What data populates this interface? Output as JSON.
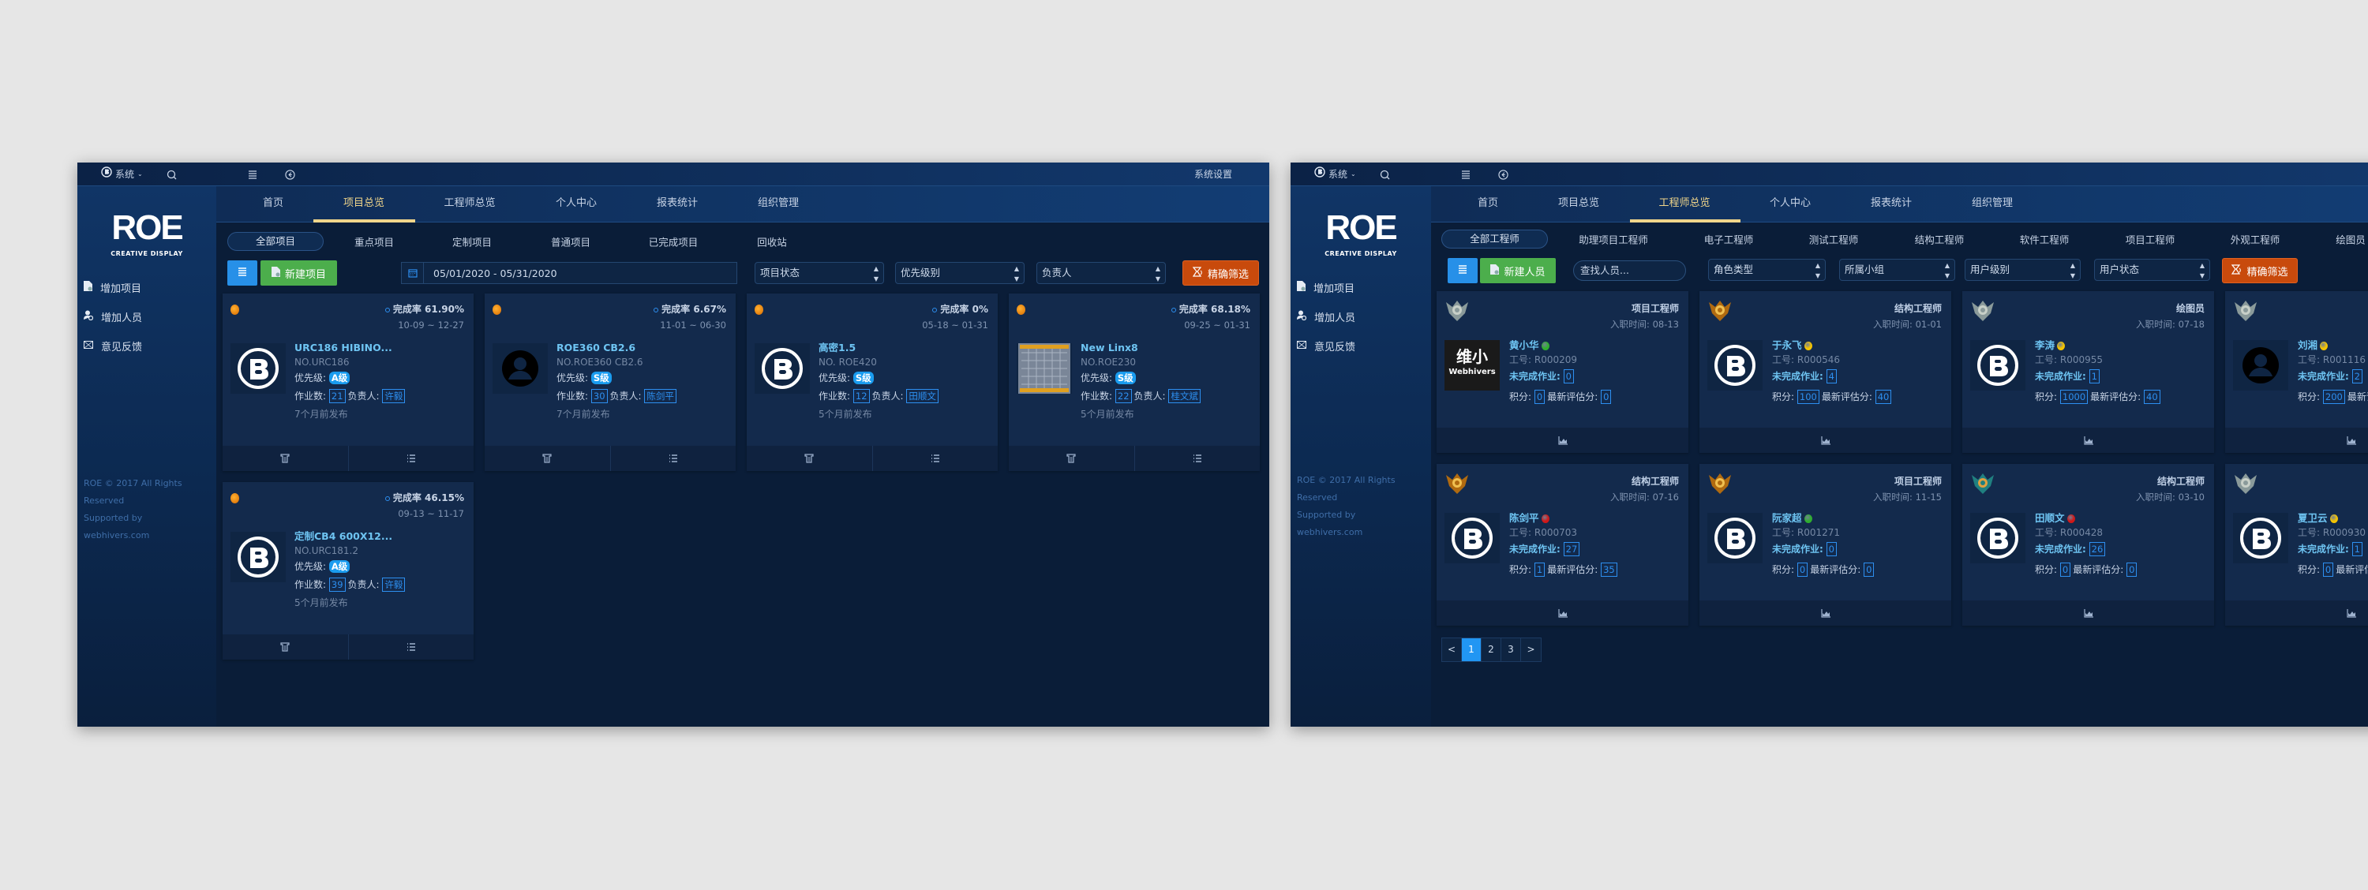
{
  "colors": {
    "accent": "#2d8ff0",
    "active_tab": "#f0d58a",
    "new_button": "#4cae4c",
    "filter_button": "#c84a0c",
    "view_button": "#2790e8",
    "status_green": "#2fae2f",
    "status_yellow": "#f5c400",
    "status_red": "#d01818"
  },
  "brand": {
    "logo_main": "ROE",
    "logo_sub": "CREATIVE DISPLAY"
  },
  "topbar": {
    "system_label": "系统",
    "settings_label": "系统设置"
  },
  "nav": {
    "tabs": [
      "首页",
      "项目总览",
      "工程师总览",
      "个人中心",
      "报表统计",
      "组织管理"
    ]
  },
  "sidebar": {
    "items": [
      {
        "label": "增加项目",
        "icon": "add-file-icon"
      },
      {
        "label": "增加人员",
        "icon": "add-user-icon"
      },
      {
        "label": "意见反馈",
        "icon": "feedback-mail-icon"
      }
    ],
    "footer": [
      "ROE © 2017 All Rights",
      "Reserved",
      "Supported by",
      "webhivers.com"
    ]
  },
  "projects": {
    "active_tab": "项目总览",
    "subtabs": [
      "全部项目",
      "重点项目",
      "定制项目",
      "普通项目",
      "已完成项目",
      "回收站"
    ],
    "toolbar": {
      "new_label": "新建项目",
      "date_range": "05/01/2020 - 05/31/2020",
      "selects": [
        "项目状态",
        "优先级别",
        "负责人"
      ],
      "filter_label": "精确筛选"
    },
    "labels": {
      "rate": "完成率",
      "priority": "优先级:",
      "tasks": "作业数:",
      "owner": "负责人:"
    },
    "cards": [
      {
        "rate": "61.90%",
        "dates": "10-09 ~ 12-27",
        "title": "URC186 HIBINO...",
        "no": "NO.URC186",
        "priority": "A级",
        "tasks": "21",
        "owner": "许毅",
        "published": "7个月前发布",
        "avatar": "b-logo"
      },
      {
        "rate": "6.67%",
        "dates": "11-01 ~ 06-30",
        "title": "ROE360 CB2.6",
        "no": "NO.ROE360 CB2.6",
        "priority": "S级",
        "tasks": "30",
        "owner": "陈剑平",
        "published": "7个月前发布",
        "avatar": "person"
      },
      {
        "rate": "0%",
        "dates": "05-18 ~ 01-31",
        "title": "高密1.5",
        "no": "NO. ROE420",
        "priority": "S级",
        "tasks": "12",
        "owner": "田顺文",
        "published": "5个月前发布",
        "avatar": "b-logo"
      },
      {
        "rate": "68.18%",
        "dates": "09-25 ~ 01-31",
        "title": "New Linx8",
        "no": "NO.ROE230",
        "priority": "S级",
        "tasks": "22",
        "owner": "桂文斌",
        "published": "5个月前发布",
        "avatar": "product-image"
      },
      {
        "rate": "46.15%",
        "dates": "09-13 ~ 11-17",
        "title": "定制CB4 600X12...",
        "no": "NO.URC181.2",
        "priority": "A级",
        "tasks": "39",
        "owner": "许毅",
        "published": "5个月前发布",
        "avatar": "b-logo"
      }
    ]
  },
  "engineers": {
    "active_tab": "工程师总览",
    "subtabs": [
      "全部工程师",
      "助理项目工程师",
      "电子工程师",
      "测试工程师",
      "结构工程师",
      "软件工程师",
      "项目工程师",
      "外观工程师",
      "绘图员"
    ],
    "toolbar": {
      "new_label": "新建人员",
      "search_placeholder": "查找人员...",
      "selects": [
        "角色类型",
        "所属小组",
        "用户级别",
        "用户状态"
      ],
      "filter_label": "精确筛选"
    },
    "labels": {
      "join": "入职时间:",
      "id": "工号:",
      "pending": "未完成作业:",
      "points": "积分:",
      "eval": "最新评估分:"
    },
    "cards": [
      {
        "name": "黄小华",
        "status": "green",
        "role": "项目工程师",
        "join": "08-13",
        "id": "R000209",
        "pending": "0",
        "points": "0",
        "eval": "0",
        "avatar": "webhivers-logo",
        "rank": "silver",
        "logo_text": [
          "维小",
          "Webhivers"
        ]
      },
      {
        "name": "于永飞",
        "status": "yellow",
        "role": "结构工程师",
        "join": "01-01",
        "id": "R000546",
        "pending": "4",
        "points": "100",
        "eval": "40",
        "avatar": "b-logo",
        "rank": "gold"
      },
      {
        "name": "李涛",
        "status": "yellow",
        "role": "绘图员",
        "join": "07-18",
        "id": "R000955",
        "pending": "1",
        "points": "1000",
        "eval": "40",
        "avatar": "b-logo",
        "rank": "silver"
      },
      {
        "name": "刘湘",
        "status": "yellow",
        "id": "R001116",
        "pending": "2",
        "points": "200",
        "avatar": "person",
        "rank": "silver"
      },
      {
        "name": "陈剑平",
        "status": "red",
        "role": "结构工程师",
        "join": "07-16",
        "id": "R000703",
        "pending": "27",
        "points": "1",
        "eval": "35",
        "avatar": "b-logo",
        "rank": "gold"
      },
      {
        "name": "阮家超",
        "status": "green",
        "role": "项目工程师",
        "join": "11-15",
        "id": "R001271",
        "pending": "0",
        "points": "0",
        "eval": "0",
        "avatar": "b-logo",
        "rank": "gold"
      },
      {
        "name": "田顺文",
        "status": "red",
        "role": "结构工程师",
        "join": "03-10",
        "id": "R000428",
        "pending": "26",
        "points": "0",
        "eval": "0",
        "avatar": "b-logo",
        "rank": "platinum"
      },
      {
        "name": "夏卫云",
        "status": "yellow",
        "id": "R000930",
        "pending": "1",
        "points": "0",
        "avatar": "b-logo",
        "rank": "silver"
      }
    ],
    "pagination": {
      "prev": "<",
      "pages": [
        "1",
        "2",
        "3"
      ],
      "current": "1",
      "next": ">"
    }
  }
}
